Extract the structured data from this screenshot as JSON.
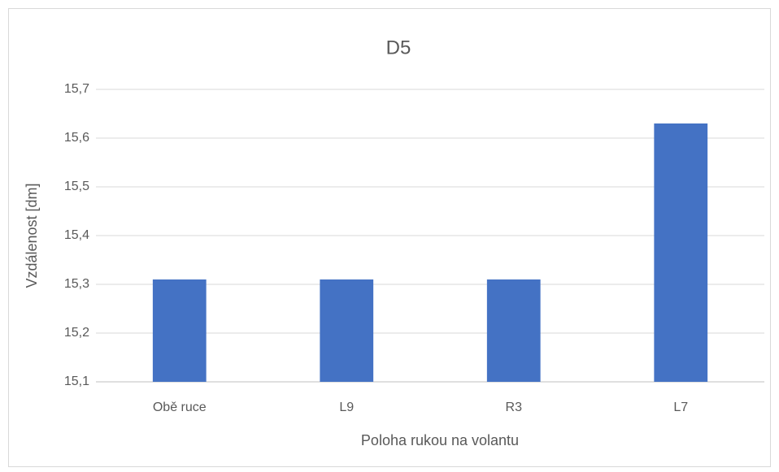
{
  "chart_data": {
    "type": "bar",
    "title": "D5",
    "x_label": "Poloha rukou na volantu",
    "y_label": "Vzdálenost [dm]",
    "categories": [
      "Obě ruce",
      "L9",
      "R3",
      "L7"
    ],
    "values": [
      15.31,
      15.31,
      15.31,
      15.63
    ],
    "color": "#4472c4",
    "ylim": [
      15.1,
      15.7
    ],
    "yticks": [
      {
        "value": 15.1,
        "label": "15,1"
      },
      {
        "value": 15.2,
        "label": "15,2"
      },
      {
        "value": 15.3,
        "label": "15,3"
      },
      {
        "value": 15.4,
        "label": "15,4"
      },
      {
        "value": 15.5,
        "label": "15,5"
      },
      {
        "value": 15.6,
        "label": "15,6"
      },
      {
        "value": 15.7,
        "label": "15,7"
      }
    ],
    "grid": true
  }
}
